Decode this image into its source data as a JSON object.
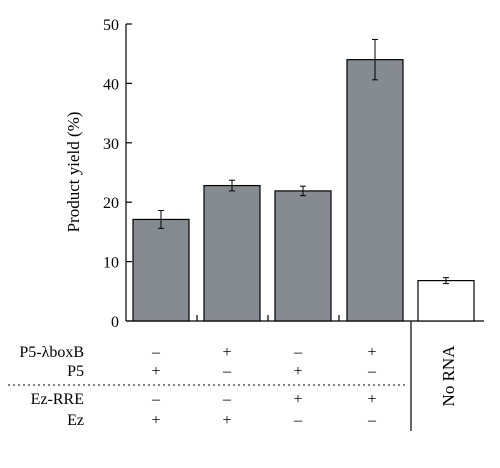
{
  "chart_data": {
    "type": "bar",
    "ylabel": "Product yield (%)",
    "ylim": [
      0,
      50
    ],
    "yticks": [
      "0",
      "10",
      "20",
      "30",
      "40",
      "50"
    ],
    "bars": [
      {
        "value": 17.1,
        "error": 1.5,
        "color": "#858b91"
      },
      {
        "value": 22.8,
        "error": 0.9,
        "color": "#858b91"
      },
      {
        "value": 21.9,
        "error": 0.8,
        "color": "#858b91"
      },
      {
        "value": 44.0,
        "error": 3.4,
        "color": "#858b91"
      },
      {
        "value": 6.8,
        "error": 0.5,
        "color": "#ffffff"
      }
    ],
    "no_rna_label": "No RNA",
    "conditions": [
      {
        "label": "P5-λboxB",
        "values": [
          "–",
          "+",
          "–",
          "+"
        ]
      },
      {
        "label": "P5",
        "values": [
          "+",
          "–",
          "+",
          "–"
        ]
      },
      {
        "label": "Ez-RRE",
        "values": [
          "–",
          "–",
          "+",
          "+"
        ]
      },
      {
        "label": "Ez",
        "values": [
          "+",
          "+",
          "–",
          "–"
        ]
      }
    ]
  }
}
